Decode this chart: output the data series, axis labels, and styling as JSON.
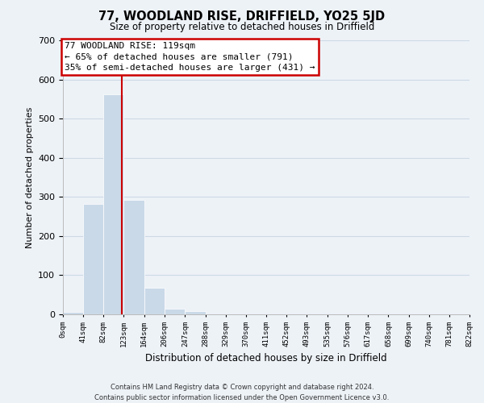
{
  "title": "77, WOODLAND RISE, DRIFFIELD, YO25 5JD",
  "subtitle": "Size of property relative to detached houses in Driffield",
  "xlabel": "Distribution of detached houses by size in Driffield",
  "ylabel": "Number of detached properties",
  "bar_edges": [
    0,
    41,
    82,
    123,
    164,
    206,
    247,
    288,
    329,
    370,
    411,
    452,
    493,
    535,
    576,
    617,
    658,
    699,
    740,
    781,
    822
  ],
  "bar_heights": [
    7,
    282,
    562,
    293,
    68,
    14,
    9,
    0,
    0,
    0,
    0,
    0,
    0,
    0,
    0,
    0,
    0,
    0,
    0,
    0
  ],
  "bar_color": "#cad9e8",
  "vline_x": 119,
  "vline_color": "#cc0000",
  "ylim": [
    0,
    700
  ],
  "yticks": [
    0,
    100,
    200,
    300,
    400,
    500,
    600,
    700
  ],
  "xtick_labels": [
    "0sqm",
    "41sqm",
    "82sqm",
    "123sqm",
    "164sqm",
    "206sqm",
    "247sqm",
    "288sqm",
    "329sqm",
    "370sqm",
    "411sqm",
    "452sqm",
    "493sqm",
    "535sqm",
    "576sqm",
    "617sqm",
    "658sqm",
    "699sqm",
    "740sqm",
    "781sqm",
    "822sqm"
  ],
  "annotation_box_text": "77 WOODLAND RISE: 119sqm\n← 65% of detached houses are smaller (791)\n35% of semi-detached houses are larger (431) →",
  "footer_line1": "Contains HM Land Registry data © Crown copyright and database right 2024.",
  "footer_line2": "Contains public sector information licensed under the Open Government Licence v3.0.",
  "grid_color": "#cdd9e5",
  "background_color": "#edf2f7"
}
